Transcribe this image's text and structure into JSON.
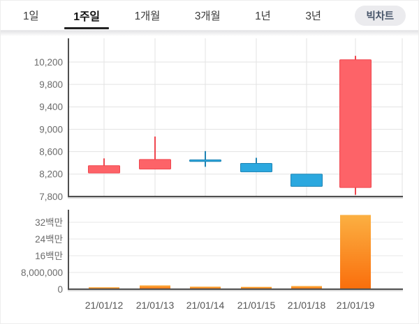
{
  "tabbar": {
    "tabs": [
      {
        "label": "1일",
        "active": false
      },
      {
        "label": "1주일",
        "active": true
      },
      {
        "label": "1개월",
        "active": false
      },
      {
        "label": "3개월",
        "active": false
      },
      {
        "label": "1년",
        "active": false
      },
      {
        "label": "3년",
        "active": false
      }
    ],
    "big_chart_label": "빅차트"
  },
  "colors": {
    "up_fill": "#fd6368",
    "up_border": "#ef464e",
    "down_fill": "#2ba8df",
    "down_border": "#1f84b4",
    "volume_gradient_top": "#fbb042",
    "volume_gradient_bottom": "#fa6e0c",
    "grid": "#e3e3e3",
    "axis": "#4f4f4f",
    "axis_shadow": "#b0b0b0",
    "tick_label": "#6b6b6b",
    "date_label": "#555555"
  },
  "chart_data": [
    {
      "type": "candlestick",
      "title": "",
      "x": [
        "21/01/12",
        "21/01/13",
        "21/01/14",
        "21/01/15",
        "21/01/18",
        "21/01/19"
      ],
      "ohlc": [
        {
          "open": 8220,
          "high": 8480,
          "low": 8220,
          "close": 8350,
          "direction": "up"
        },
        {
          "open": 8290,
          "high": 8870,
          "low": 8290,
          "close": 8460,
          "direction": "up"
        },
        {
          "open": 8440,
          "high": 8610,
          "low": 8330,
          "close": 8430,
          "direction": "down"
        },
        {
          "open": 8390,
          "high": 8490,
          "low": 8240,
          "close": 8240,
          "direction": "down"
        },
        {
          "open": 8200,
          "high": 8200,
          "low": 7980,
          "close": 7980,
          "direction": "down"
        },
        {
          "open": 7960,
          "high": 10310,
          "low": 7830,
          "close": 10240,
          "direction": "up"
        }
      ],
      "y_tick_labels": [
        "10,200",
        "9,800",
        "9,400",
        "9,000",
        "8,600",
        "8,200",
        "7,800"
      ],
      "y_tick_values": [
        10200,
        9800,
        9400,
        9000,
        8600,
        8200,
        7800
      ],
      "ylim": [
        7800,
        10400
      ],
      "grid": true,
      "legend": false
    },
    {
      "type": "bar",
      "title": "",
      "x": [
        "21/01/12",
        "21/01/13",
        "21/01/14",
        "21/01/15",
        "21/01/18",
        "21/01/19"
      ],
      "values": [
        900000,
        1800000,
        1200000,
        1100000,
        1500000,
        35500000
      ],
      "y_tick_labels": [
        "32백만",
        "24백만",
        "16백만",
        "8,000,000",
        "0"
      ],
      "y_tick_values": [
        32000000,
        24000000,
        16000000,
        8000000,
        0
      ],
      "ylim": [
        0,
        38000000
      ],
      "ylabel_unit": "백만 = million",
      "grid": true,
      "legend": false
    }
  ]
}
